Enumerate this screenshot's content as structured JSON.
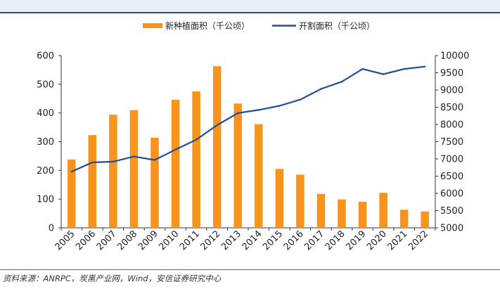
{
  "source_note": "资料来源：ANRPC，炭黑产业网，Wind，安信证券研究中心",
  "colors": {
    "bars": "#F7941D",
    "line": "#1F4E96",
    "header_band": "#e8edf7",
    "header_rule": "#2a4a8e"
  },
  "chart_data": {
    "type": "bar+line",
    "categories": [
      "2005",
      "2006",
      "2007",
      "2008",
      "2009",
      "2010",
      "2011",
      "2012",
      "2013",
      "2014",
      "2015",
      "2016",
      "2017",
      "2018",
      "2019",
      "2020",
      "2021",
      "2022"
    ],
    "series": [
      {
        "name": "新种植面积（千公顷）",
        "type": "bar",
        "axis": "left",
        "values": [
          238,
          323,
          394,
          410,
          314,
          446,
          475,
          563,
          433,
          361,
          205,
          185,
          118,
          99,
          91,
          122,
          63,
          57
        ]
      },
      {
        "name": "开割面积（千公顷）",
        "type": "line",
        "axis": "right",
        "values": [
          6630,
          6900,
          6920,
          7070,
          6970,
          7270,
          7560,
          7980,
          8330,
          8420,
          8540,
          8720,
          9030,
          9240,
          9610,
          9460,
          9610,
          9680
        ]
      }
    ],
    "y_left": {
      "ylim": [
        0,
        600
      ],
      "ticks": [
        0,
        100,
        200,
        300,
        400,
        500,
        600
      ]
    },
    "y_right": {
      "ylim": [
        5000,
        10000
      ],
      "ticks": [
        5000,
        5500,
        6000,
        6500,
        7000,
        7500,
        8000,
        8500,
        9000,
        9500,
        10000
      ]
    },
    "legend_position": "top-center",
    "grid": false
  }
}
